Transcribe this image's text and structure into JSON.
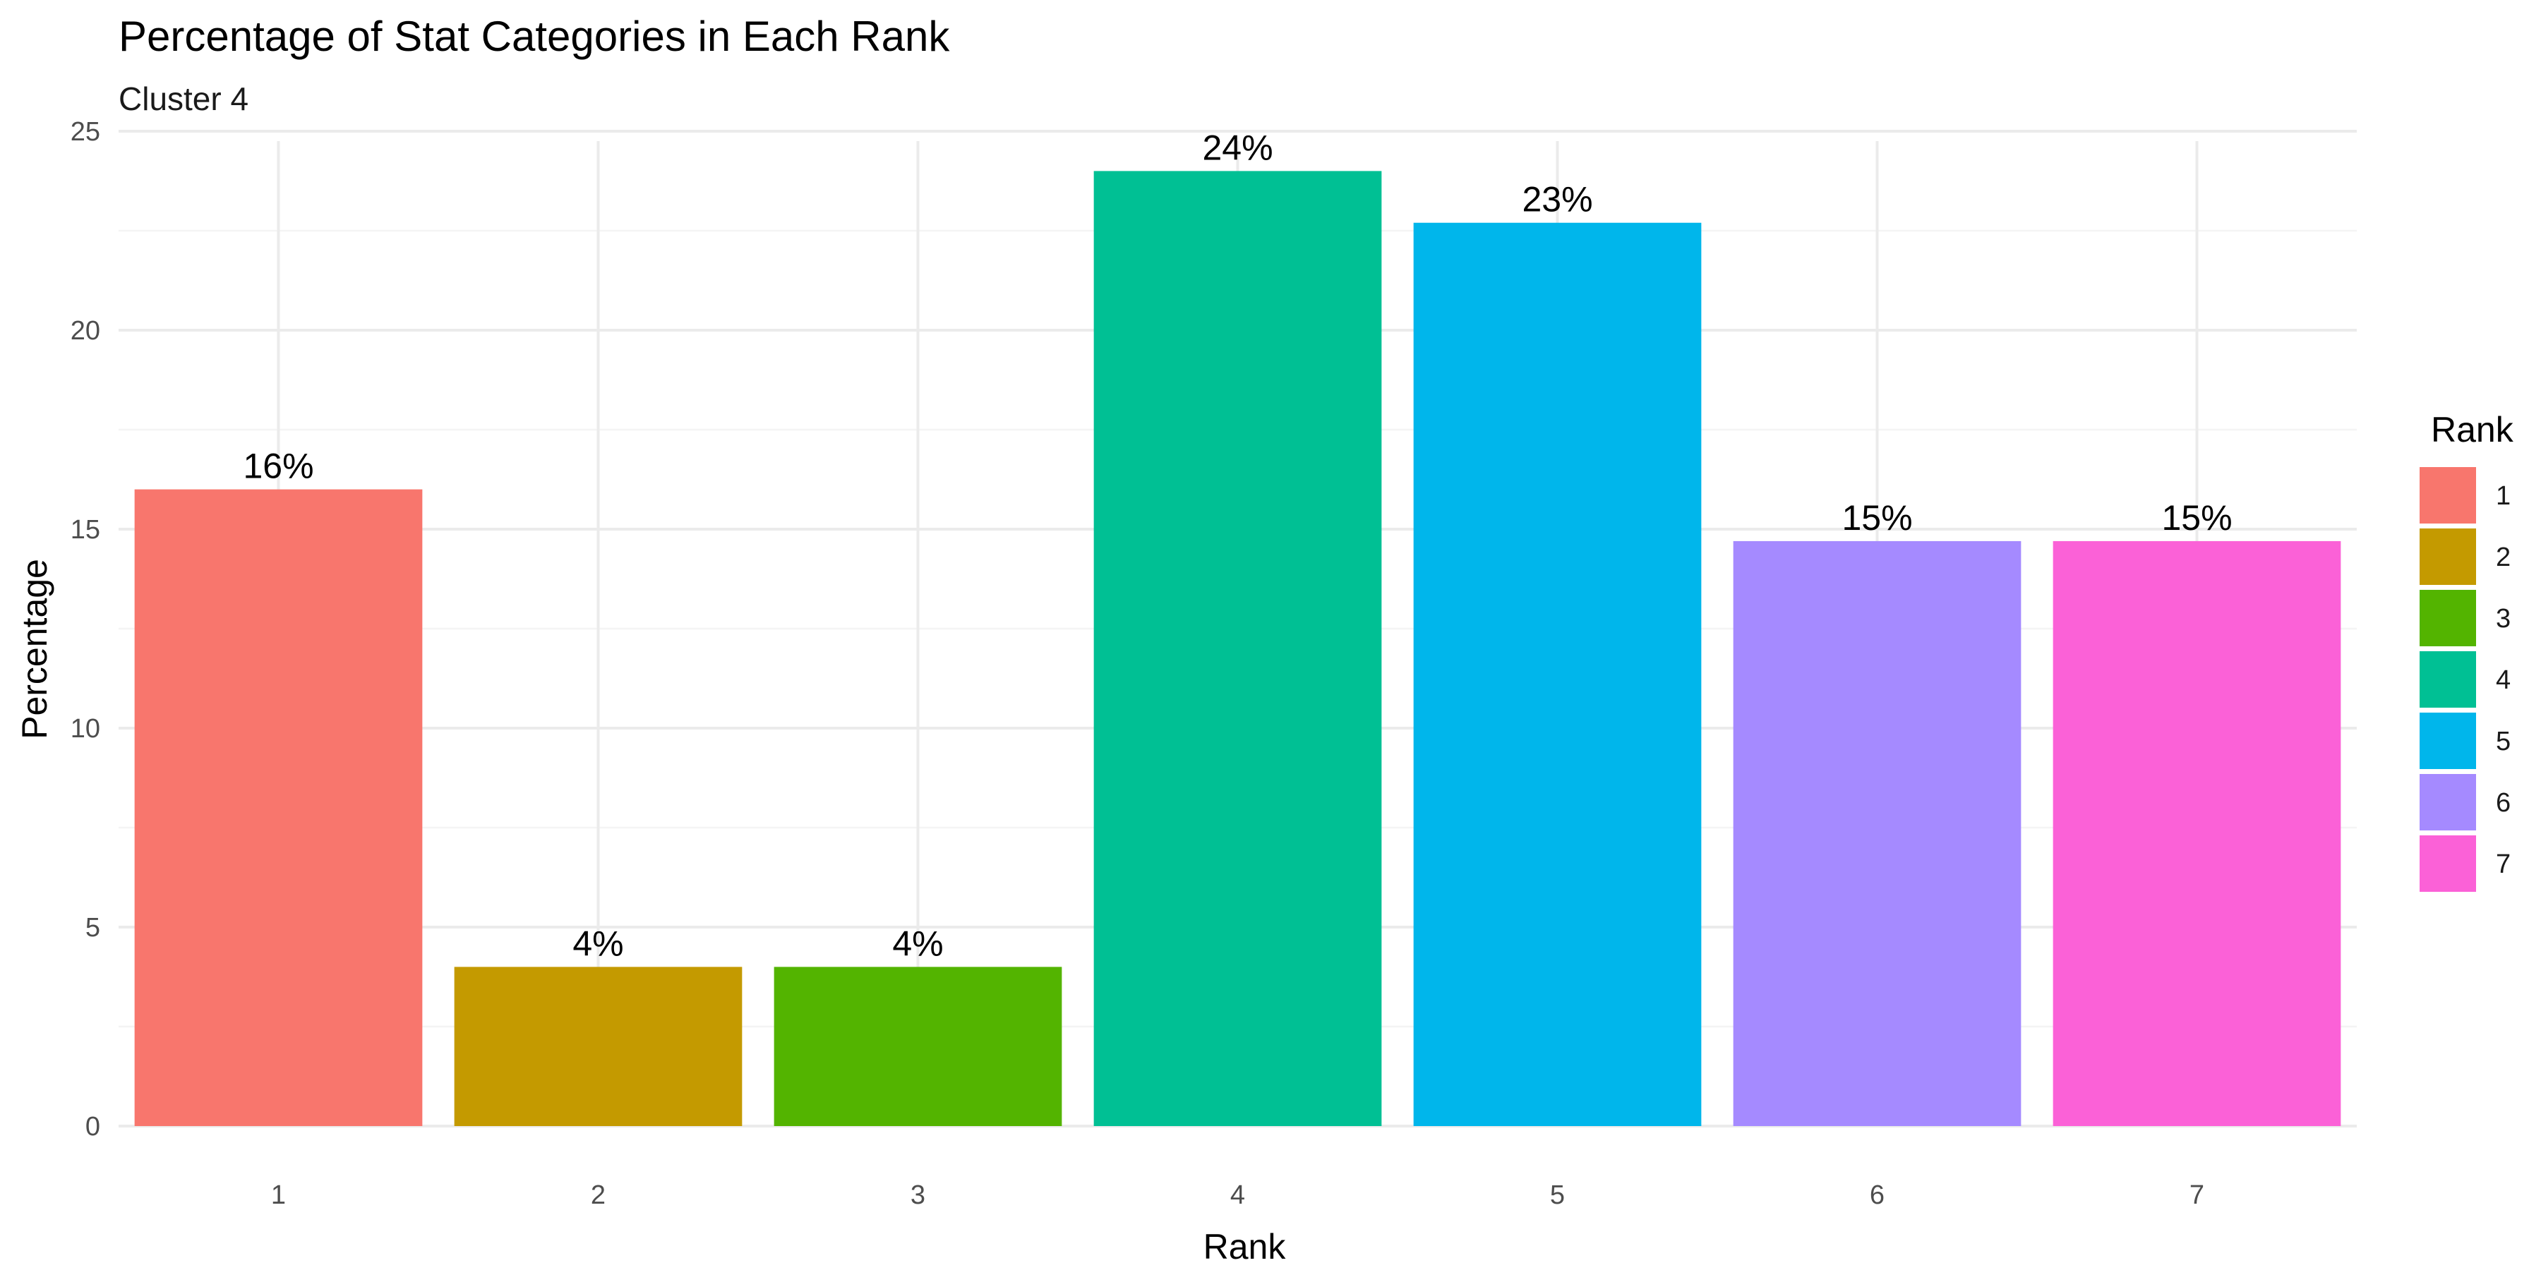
{
  "chart_data": {
    "type": "bar",
    "title": "Percentage of Stat Categories in Each Rank",
    "subtitle": "Cluster 4",
    "xlabel": "Rank",
    "ylabel": "Percentage",
    "categories": [
      "1",
      "2",
      "3",
      "4",
      "5",
      "6",
      "7"
    ],
    "values": [
      16.0,
      4.0,
      4.0,
      24.0,
      22.7,
      14.7,
      14.7
    ],
    "data_labels": [
      "16%",
      "4%",
      "4%",
      "24%",
      "23%",
      "15%",
      "15%"
    ],
    "colors": [
      "#F8766D",
      "#C49A00",
      "#53B400",
      "#00C094",
      "#00B6EB",
      "#A58AFF",
      "#FB61D7"
    ],
    "ylim": [
      0,
      25
    ],
    "yticks": [
      0,
      5,
      10,
      15,
      20,
      25
    ],
    "grid": true,
    "legend": {
      "title": "Rank",
      "placement": "right",
      "items": [
        "1",
        "2",
        "3",
        "4",
        "5",
        "6",
        "7"
      ]
    }
  }
}
